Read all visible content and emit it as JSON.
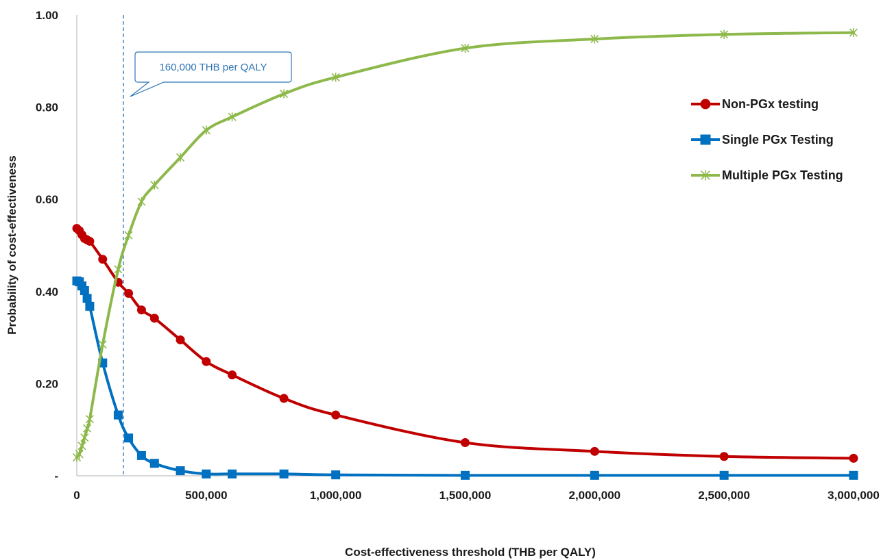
{
  "chart_data": {
    "type": "line",
    "title": "",
    "xlabel": "Cost-effectiveness threshold (THB per QALY)",
    "ylabel": "Probability of cost-effectiveness",
    "xlim": [
      0,
      3000000
    ],
    "ylim": [
      0,
      1.0
    ],
    "x_ticks": [
      0,
      500000,
      1000000,
      1500000,
      2000000,
      2500000,
      3000000
    ],
    "x_tick_labels": [
      "0",
      "500,000",
      "1,000,000",
      "1,500,000",
      "2,000,000",
      "2,500,000",
      "3,000,000"
    ],
    "y_ticks": [
      0,
      0.2,
      0.4,
      0.6,
      0.8,
      1.0
    ],
    "y_tick_labels": [
      "-",
      "0.20",
      "0.40",
      "0.60",
      "0.80",
      "1.00"
    ],
    "grid": false,
    "legend_position": "right",
    "series": [
      {
        "name": "Non-PGx testing",
        "color": "#c00000",
        "marker": "circle",
        "points": [
          [
            0,
            0.537
          ],
          [
            10000,
            0.532
          ],
          [
            20000,
            0.523
          ],
          [
            30000,
            0.515
          ],
          [
            40000,
            0.512
          ],
          [
            50000,
            0.509
          ],
          [
            100000,
            0.47
          ],
          [
            160000,
            0.42
          ],
          [
            200000,
            0.396
          ],
          [
            250000,
            0.36
          ],
          [
            300000,
            0.342
          ],
          [
            400000,
            0.295
          ],
          [
            500000,
            0.248
          ],
          [
            600000,
            0.219
          ],
          [
            800000,
            0.168
          ],
          [
            1000000,
            0.132
          ],
          [
            1500000,
            0.072
          ],
          [
            2000000,
            0.053
          ],
          [
            2500000,
            0.042
          ],
          [
            3000000,
            0.038
          ]
        ]
      },
      {
        "name": "Single PGx Testing",
        "color": "#0070c0",
        "marker": "square",
        "points": [
          [
            0,
            0.423
          ],
          [
            10000,
            0.421
          ],
          [
            20000,
            0.412
          ],
          [
            30000,
            0.402
          ],
          [
            40000,
            0.385
          ],
          [
            50000,
            0.368
          ],
          [
            100000,
            0.245
          ],
          [
            160000,
            0.132
          ],
          [
            200000,
            0.082
          ],
          [
            250000,
            0.044
          ],
          [
            300000,
            0.027
          ],
          [
            400000,
            0.011
          ],
          [
            500000,
            0.004
          ],
          [
            600000,
            0.004
          ],
          [
            800000,
            0.004
          ],
          [
            1000000,
            0.002
          ],
          [
            1500000,
            0.001
          ],
          [
            2000000,
            0.001
          ],
          [
            2500000,
            0.001
          ],
          [
            3000000,
            0.001
          ]
        ]
      },
      {
        "name": "Multiple PGx Testing",
        "color": "#8db84a",
        "marker": "star",
        "points": [
          [
            0,
            0.04
          ],
          [
            10000,
            0.047
          ],
          [
            20000,
            0.065
          ],
          [
            30000,
            0.083
          ],
          [
            40000,
            0.103
          ],
          [
            50000,
            0.123
          ],
          [
            100000,
            0.285
          ],
          [
            160000,
            0.448
          ],
          [
            200000,
            0.522
          ],
          [
            250000,
            0.595
          ],
          [
            300000,
            0.631
          ],
          [
            400000,
            0.691
          ],
          [
            500000,
            0.75
          ],
          [
            600000,
            0.779
          ],
          [
            800000,
            0.829
          ],
          [
            1000000,
            0.865
          ],
          [
            1500000,
            0.928
          ],
          [
            2000000,
            0.948
          ],
          [
            2500000,
            0.958
          ],
          [
            3000000,
            0.962
          ]
        ]
      }
    ],
    "annotations": [
      {
        "text": "160,000 THB per QALY",
        "x": 180000,
        "style": "dashed vertical line with callout"
      }
    ],
    "annotation_color": "#2e75b6"
  }
}
